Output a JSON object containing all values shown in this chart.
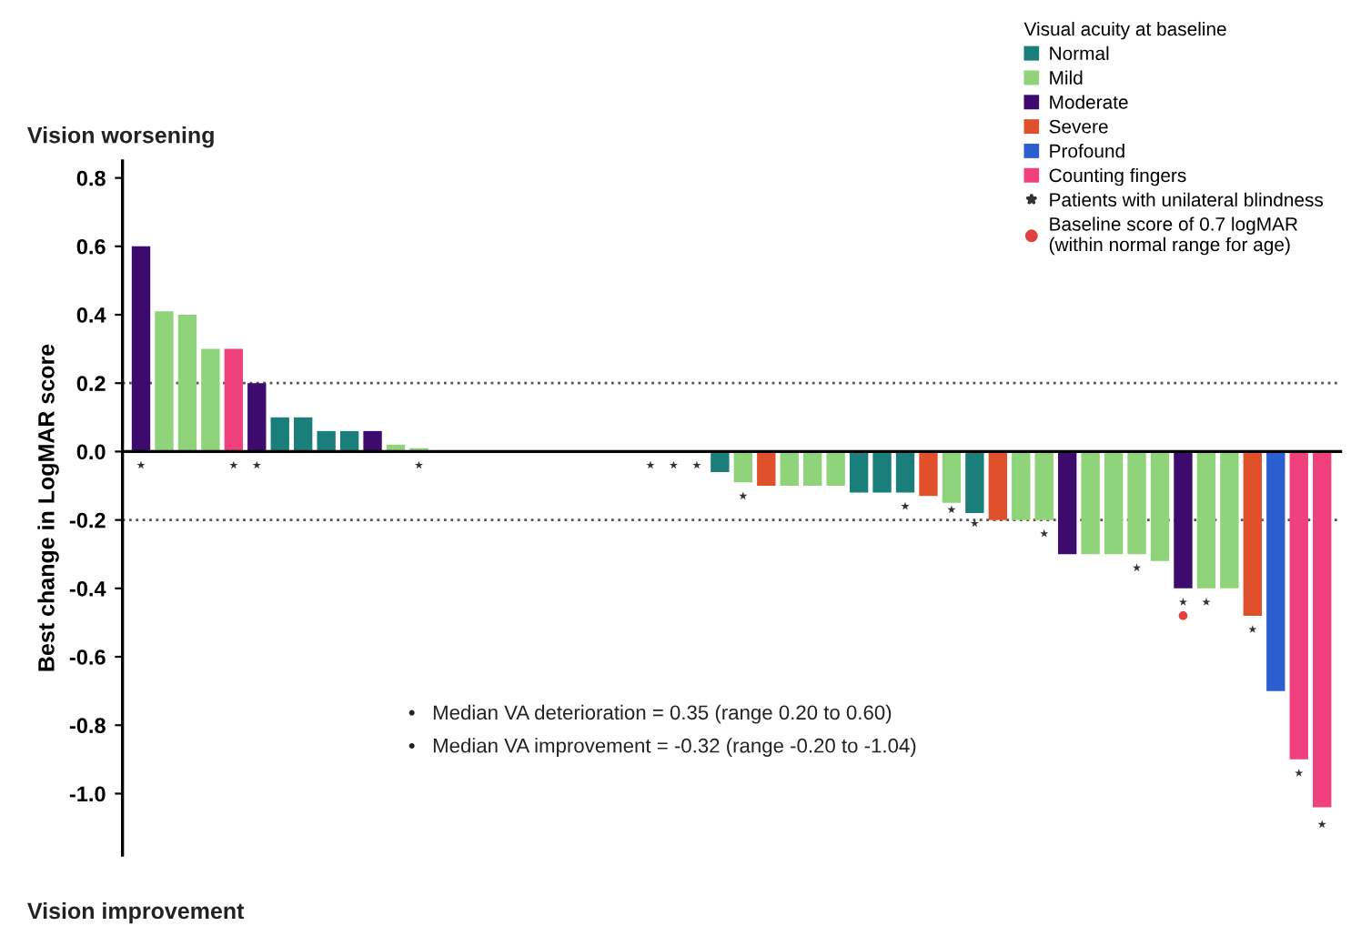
{
  "chart_data": {
    "type": "bar",
    "ylabel": "Best change in LogMAR score",
    "legend_title": "Visual acuity at baseline",
    "legend": "top right",
    "grid": false,
    "categories": [
      null,
      null,
      null,
      null,
      null,
      null,
      null,
      null,
      null,
      null,
      null,
      null,
      null,
      null,
      null,
      null,
      null,
      null,
      null,
      null,
      null,
      null,
      null,
      null,
      null,
      null,
      null,
      null,
      null,
      null,
      null,
      null,
      null,
      null,
      null,
      null,
      null,
      null,
      null,
      null,
      null,
      null,
      null,
      null,
      null,
      null,
      null,
      null,
      null,
      null,
      null,
      null
    ],
    "series": [
      {
        "name": "Normal",
        "color": "#1a7f7a",
        "values": [
          null,
          null,
          null,
          null,
          null,
          null,
          0.1,
          0.1,
          0.06,
          0.06,
          null,
          null,
          null,
          null,
          null,
          null,
          null,
          null,
          null,
          null,
          null,
          null,
          null,
          null,
          null,
          -0.06,
          null,
          null,
          null,
          null,
          null,
          -0.12,
          -0.12,
          -0.12,
          null,
          null,
          -0.18,
          null,
          null,
          null,
          null,
          null,
          null,
          null,
          null,
          null,
          null,
          null,
          null,
          null,
          null,
          null
        ]
      },
      {
        "name": "Mild",
        "color": "#8fd37a",
        "values": [
          null,
          0.41,
          0.4,
          0.3,
          null,
          null,
          null,
          null,
          null,
          null,
          null,
          0.02,
          0.01,
          0,
          0,
          0,
          0,
          0,
          0,
          0,
          0,
          0,
          0,
          0,
          0,
          null,
          -0.09,
          null,
          -0.1,
          -0.1,
          -0.1,
          null,
          null,
          null,
          null,
          -0.15,
          null,
          null,
          -0.2,
          -0.2,
          null,
          -0.3,
          -0.3,
          -0.3,
          -0.32,
          null,
          -0.4,
          -0.4,
          null,
          null,
          null,
          null
        ]
      },
      {
        "name": "Moderate",
        "color": "#3d0a6e",
        "values": [
          0.6,
          null,
          null,
          null,
          null,
          0.2,
          null,
          null,
          null,
          null,
          0.06,
          null,
          null,
          null,
          null,
          null,
          null,
          null,
          null,
          null,
          null,
          null,
          null,
          null,
          null,
          null,
          null,
          null,
          null,
          null,
          null,
          null,
          null,
          null,
          null,
          null,
          null,
          null,
          null,
          null,
          -0.3,
          null,
          null,
          null,
          null,
          -0.4,
          null,
          null,
          null,
          null,
          null,
          null
        ]
      },
      {
        "name": "Severe",
        "color": "#e0502a",
        "values": [
          null,
          null,
          null,
          null,
          null,
          null,
          null,
          null,
          null,
          null,
          null,
          null,
          null,
          null,
          null,
          null,
          null,
          null,
          null,
          null,
          null,
          null,
          null,
          null,
          null,
          null,
          null,
          -0.1,
          null,
          null,
          null,
          null,
          null,
          null,
          -0.13,
          null,
          null,
          -0.2,
          null,
          null,
          null,
          null,
          null,
          null,
          null,
          null,
          null,
          null,
          -0.48,
          null,
          null,
          null
        ]
      },
      {
        "name": "Profound",
        "color": "#2b5fd0",
        "values": [
          null,
          null,
          null,
          null,
          null,
          null,
          null,
          null,
          null,
          null,
          null,
          null,
          null,
          null,
          null,
          null,
          null,
          null,
          null,
          null,
          null,
          null,
          null,
          null,
          null,
          null,
          null,
          null,
          null,
          null,
          null,
          null,
          null,
          null,
          null,
          null,
          null,
          null,
          null,
          null,
          null,
          null,
          null,
          null,
          null,
          null,
          null,
          null,
          null,
          -0.7,
          null,
          null
        ]
      },
      {
        "name": "Counting fingers",
        "color": "#f0407e",
        "values": [
          null,
          null,
          null,
          null,
          0.3,
          null,
          null,
          null,
          null,
          null,
          null,
          null,
          null,
          null,
          null,
          null,
          null,
          null,
          null,
          null,
          null,
          null,
          null,
          null,
          null,
          null,
          null,
          null,
          null,
          null,
          null,
          null,
          null,
          null,
          null,
          null,
          null,
          null,
          null,
          null,
          null,
          null,
          null,
          null,
          null,
          null,
          null,
          null,
          null,
          null,
          -0.9,
          -1.04
        ]
      },
      {
        "type": "scatter",
        "marker": "star",
        "name": "Patients with unilateral blindness",
        "color": "#333333",
        "values": [
          -0.04,
          null,
          null,
          null,
          -0.04,
          -0.04,
          null,
          null,
          null,
          null,
          null,
          null,
          -0.04,
          null,
          null,
          null,
          null,
          null,
          null,
          null,
          null,
          null,
          -0.04,
          -0.04,
          -0.04,
          null,
          -0.13,
          null,
          null,
          null,
          null,
          null,
          null,
          -0.16,
          null,
          -0.17,
          -0.21,
          null,
          null,
          -0.24,
          null,
          null,
          null,
          -0.34,
          null,
          -0.44,
          -0.44,
          null,
          -0.52,
          null,
          -0.94,
          -1.09
        ]
      },
      {
        "type": "scatter",
        "marker": "circle",
        "name": "Baseline score of 0.7 logMAR\n(within normal range for age)",
        "color": "#e04040",
        "values": [
          null,
          null,
          null,
          null,
          null,
          null,
          null,
          null,
          null,
          null,
          null,
          null,
          null,
          null,
          null,
          null,
          null,
          null,
          null,
          null,
          null,
          null,
          null,
          null,
          null,
          null,
          null,
          null,
          null,
          null,
          null,
          null,
          null,
          null,
          null,
          null,
          null,
          null,
          null,
          null,
          null,
          null,
          null,
          null,
          null,
          -0.48,
          null,
          null,
          null,
          null,
          null,
          null
        ]
      }
    ],
    "ylim": [
      -1.18,
      0.85
    ],
    "yticks": [
      0.8,
      0.6,
      0.4,
      0.2,
      {
        "value": 0,
        "label": "0.0"
      },
      -0.2,
      -0.4,
      -0.6,
      -0.8,
      {
        "value": -1,
        "label": "-1.0"
      }
    ],
    "ref_lines": [
      {
        "axis": "y",
        "value": 0.2,
        "line_style": "dotted",
        "color": "#555555"
      },
      {
        "axis": "y",
        "value": -0.2,
        "line_style": "dotted",
        "color": "#555555"
      }
    ],
    "annotations": [
      "Vision worsening",
      "Vision improvement",
      "•   Median VA deterioration = 0.35 (range 0.20 to 0.60)",
      "•   Median VA improvement = -0.32 (range -0.20 to -1.04)"
    ]
  }
}
